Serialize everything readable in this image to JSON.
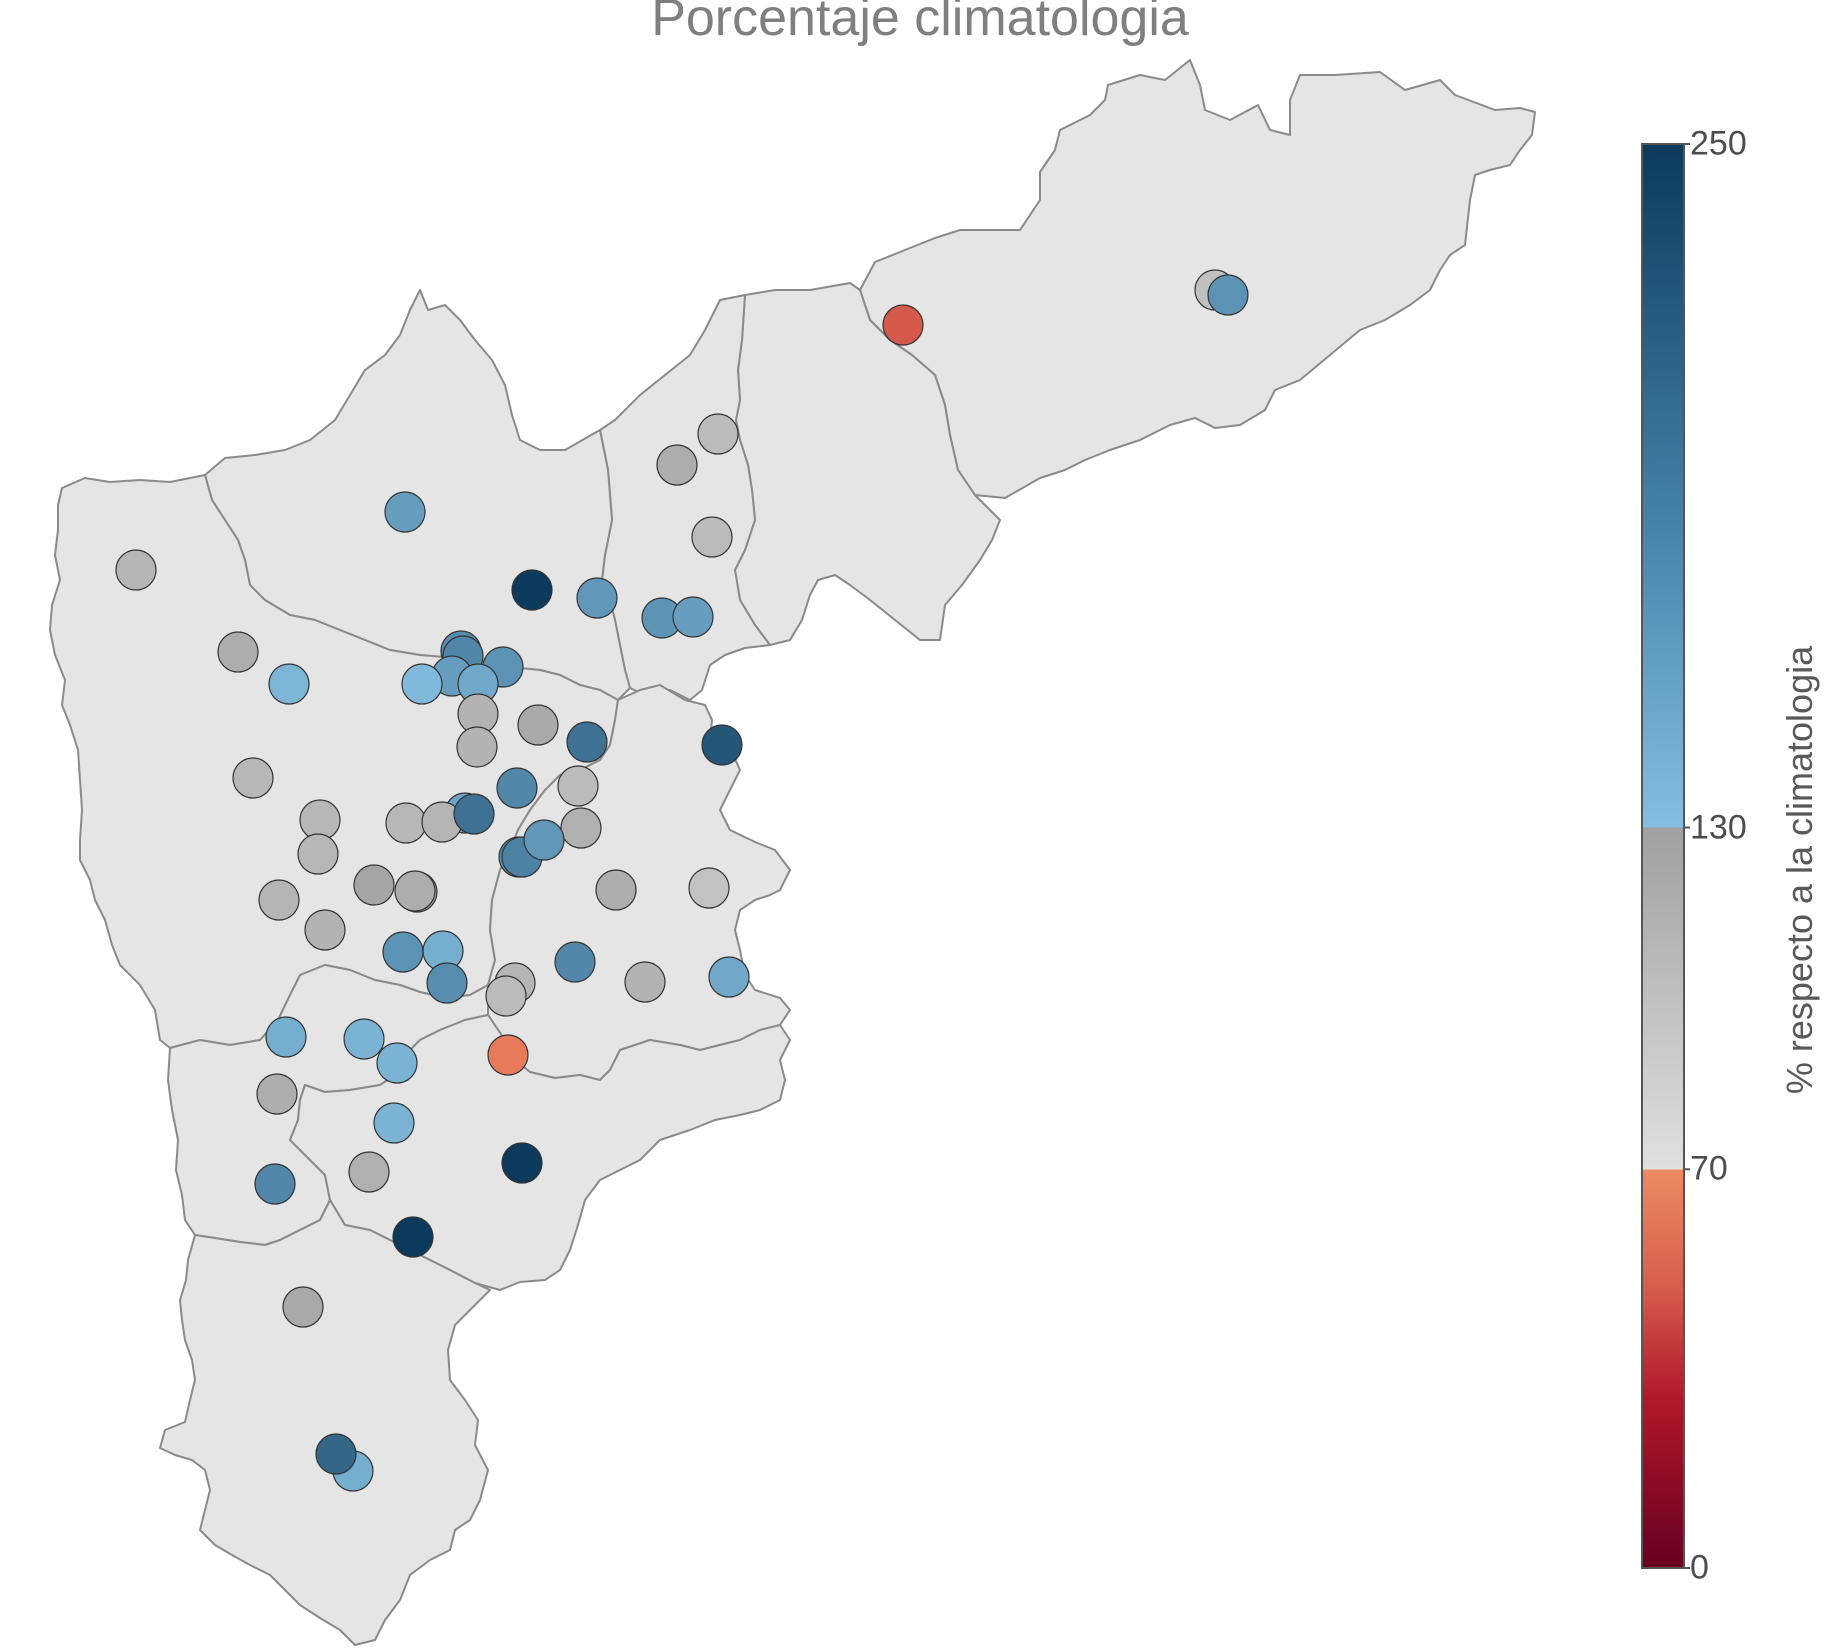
{
  "title": "Porcentaje climatologia",
  "legend": {
    "title": "% respecto a la climatologia",
    "ticks": [
      {
        "label": "250",
        "value": 250
      },
      {
        "label": "130",
        "value": 130
      },
      {
        "label": "70",
        "value": 70
      },
      {
        "label": "0",
        "value": 0
      }
    ],
    "colors": {
      "dark_red": "#67001f",
      "red": "#b2182b",
      "salmon": "#ef8a62",
      "light_grey": "#e0e0e0",
      "mid_grey": "#a0a0a0",
      "light_blue": "#85bee0",
      "dark_blue": "#0b3a5c"
    }
  },
  "map": {
    "region_fill": "#e5e5e5",
    "region_stroke": "#8a8a8a"
  },
  "stations": [
    {
      "value": 100
    },
    {
      "value": 170
    },
    {
      "value": 55
    },
    {
      "value": 105
    },
    {
      "value": 118
    },
    {
      "value": 105
    },
    {
      "value": 160
    },
    {
      "value": 110
    },
    {
      "value": 165
    },
    {
      "value": 168
    },
    {
      "value": 160
    },
    {
      "value": 250
    },
    {
      "value": 175
    },
    {
      "value": 180
    },
    {
      "value": 118
    },
    {
      "value": 138
    },
    {
      "value": 160
    },
    {
      "value": 170
    },
    {
      "value": 150
    },
    {
      "value": 135
    },
    {
      "value": 112
    },
    {
      "value": 112
    },
    {
      "value": 122
    },
    {
      "value": 200
    },
    {
      "value": 225
    },
    {
      "value": 108
    },
    {
      "value": 180
    },
    {
      "value": 105
    },
    {
      "value": 108
    },
    {
      "value": 108
    },
    {
      "value": 155
    },
    {
      "value": 175
    },
    {
      "value": 108
    },
    {
      "value": 110
    },
    {
      "value": 200
    },
    {
      "value": 115
    },
    {
      "value": 185
    },
    {
      "value": 165
    },
    {
      "value": 125
    },
    {
      "value": 125
    },
    {
      "value": 98
    },
    {
      "value": 110
    },
    {
      "value": 118
    },
    {
      "value": 118
    },
    {
      "value": 112
    },
    {
      "value": 145
    },
    {
      "value": 170
    },
    {
      "value": 180
    },
    {
      "value": 110
    },
    {
      "value": 175
    },
    {
      "value": 112
    },
    {
      "value": 105
    },
    {
      "value": 150
    },
    {
      "value": 145
    },
    {
      "value": 140
    },
    {
      "value": 140
    },
    {
      "value": 65
    },
    {
      "value": 118
    },
    {
      "value": 140
    },
    {
      "value": 250
    },
    {
      "value": 115
    },
    {
      "value": 180
    },
    {
      "value": 250
    },
    {
      "value": 122
    },
    {
      "value": 145
    },
    {
      "value": 210
    }
  ]
}
